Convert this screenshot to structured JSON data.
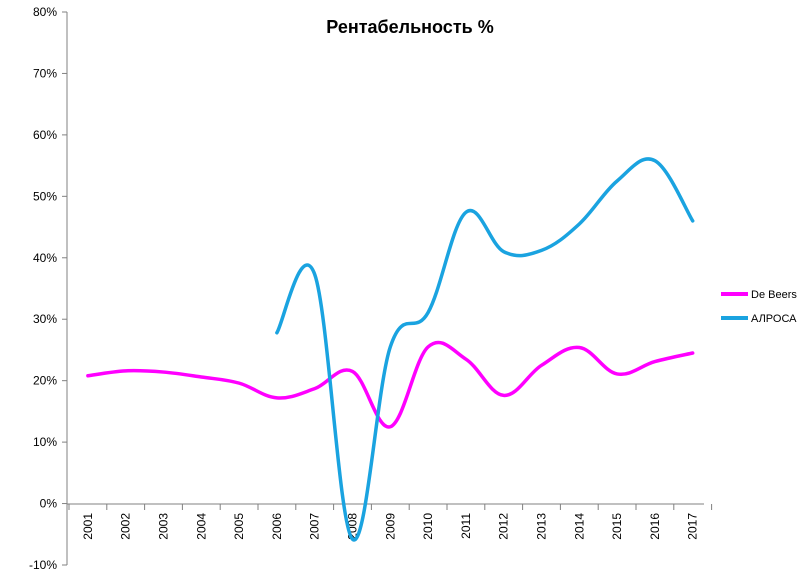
{
  "chart_data": {
    "type": "line",
    "title": "Рентабельность %",
    "categories": [
      "2001",
      "2002",
      "2003",
      "2004",
      "2005",
      "2006",
      "2007",
      "2008",
      "2009",
      "2010",
      "2011",
      "2012",
      "2013",
      "2014",
      "2015",
      "2016",
      "2017"
    ],
    "series": [
      {
        "name": "De Beers",
        "color": "#ff00ff",
        "values": [
          20.8,
          21.6,
          21.4,
          20.6,
          19.6,
          17.2,
          18.7,
          21.5,
          12.5,
          25.5,
          23.5,
          17.6,
          22.5,
          25.4,
          21.1,
          23.1,
          24.5
        ]
      },
      {
        "name": "АЛРОСА",
        "color": "#1aa3e0",
        "values": [
          null,
          null,
          null,
          null,
          null,
          27.8,
          37.3,
          -5.8,
          25.5,
          31.1,
          47.4,
          41.0,
          41.2,
          45.5,
          52.5,
          55.8,
          46.0
        ]
      }
    ],
    "yticks": [
      "-10%",
      "0%",
      "10%",
      "20%",
      "30%",
      "40%",
      "50%",
      "60%",
      "70%",
      "80%"
    ],
    "ylim": [
      -10,
      80
    ],
    "xlabel": "",
    "ylabel": "",
    "legend_position": "right",
    "grid": false
  }
}
